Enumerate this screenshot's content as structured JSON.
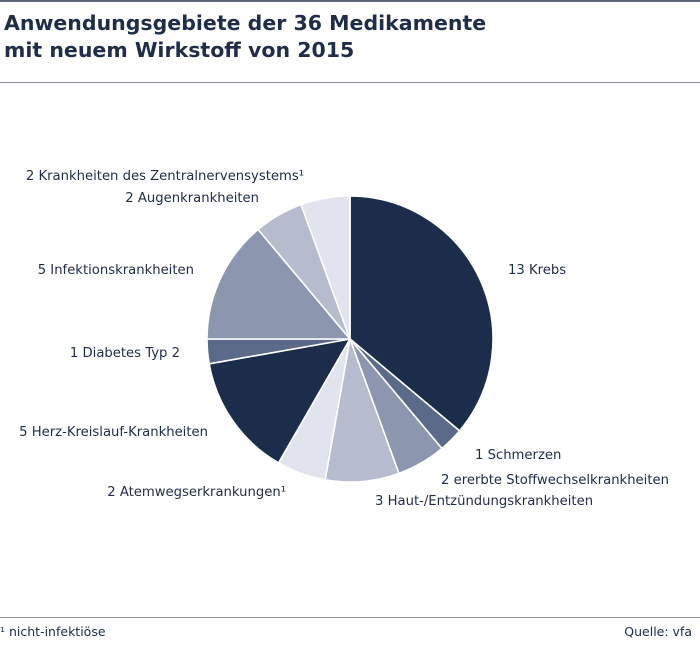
{
  "title": {
    "line1": "Anwendungsgebiete der 36 Medikamente",
    "line2": "mit neuem Wirkstoff von 2015"
  },
  "footnote": "¹ nicht-infektiöse",
  "source": "Quelle: vfa",
  "chart_data": {
    "type": "pie",
    "total": 36,
    "slices": [
      {
        "label": "13 Krebs",
        "value": 13,
        "color": "#1b2d4b"
      },
      {
        "label": "1 Schmerzen",
        "value": 1,
        "color": "#5c6a89"
      },
      {
        "label": "2 ererbte Stoffwechselkrankheiten",
        "value": 2,
        "color": "#8c96ae"
      },
      {
        "label": "3 Haut-/Entzündungskrankheiten",
        "value": 3,
        "color": "#b6bcce"
      },
      {
        "label": "2 Atemwegserkrankungen¹",
        "value": 2,
        "color": "#e1e3ee"
      },
      {
        "label": "5 Herz-Kreislauf-Krankheiten",
        "value": 5,
        "color": "#1b2d4b"
      },
      {
        "label": "1 Diabetes Typ 2",
        "value": 1,
        "color": "#5c6a89"
      },
      {
        "label": "5 Infektionskrankheiten",
        "value": 5,
        "color": "#8c96ae"
      },
      {
        "label": "2 Augenkrankheiten",
        "value": 2,
        "color": "#b6bcce"
      },
      {
        "label": "2 Krankheiten des Zentralnervensystems¹",
        "value": 2,
        "color": "#e1e3ee"
      }
    ]
  }
}
